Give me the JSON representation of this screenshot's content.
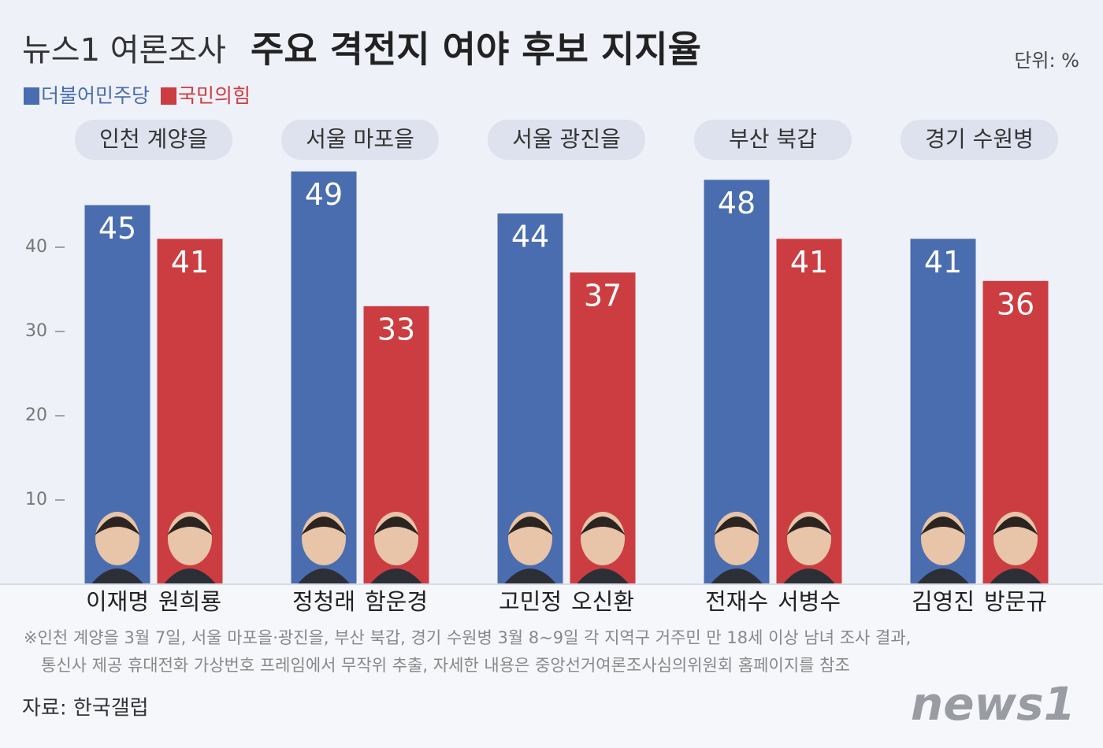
{
  "chart_data": {
    "type": "bar",
    "title_lead": "뉴스1 여론조사",
    "title": "주요 격전지 여야 후보 지지율",
    "unit": "단위: %",
    "categories": [
      "인천 계양을",
      "서울 마포을",
      "서울 광진을",
      "부산 북갑",
      "경기 수원병"
    ],
    "series": [
      {
        "name": "더불어민주당",
        "color": "#4a6db0",
        "values": [
          45,
          49,
          44,
          48,
          41
        ],
        "candidates": [
          "이재명",
          "정청래",
          "고민정",
          "전재수",
          "김영진"
        ]
      },
      {
        "name": "국민의힘",
        "color": "#cc3d42",
        "values": [
          41,
          33,
          37,
          41,
          36
        ],
        "candidates": [
          "원희룡",
          "함운경",
          "오신환",
          "서병수",
          "방문규"
        ]
      }
    ],
    "ylim": [
      0,
      50
    ],
    "yticks": [
      10,
      20,
      30,
      40
    ],
    "notes": [
      "※인천 계양을 3월 7일, 서울 마포을·광진을, 부산 북갑, 경기 수원병 3월 8~9일 각 지역구 거주민 만 18세 이상 남녀 조사 결과,",
      "통신사 제공 휴대전화 가상번호 프레임에서 무작위 추출, 자세한 내용은 중앙선거여론조사심의위원회 홈페이지를 참조"
    ],
    "source": "자료: 한국갤럽",
    "logo": "news1"
  }
}
